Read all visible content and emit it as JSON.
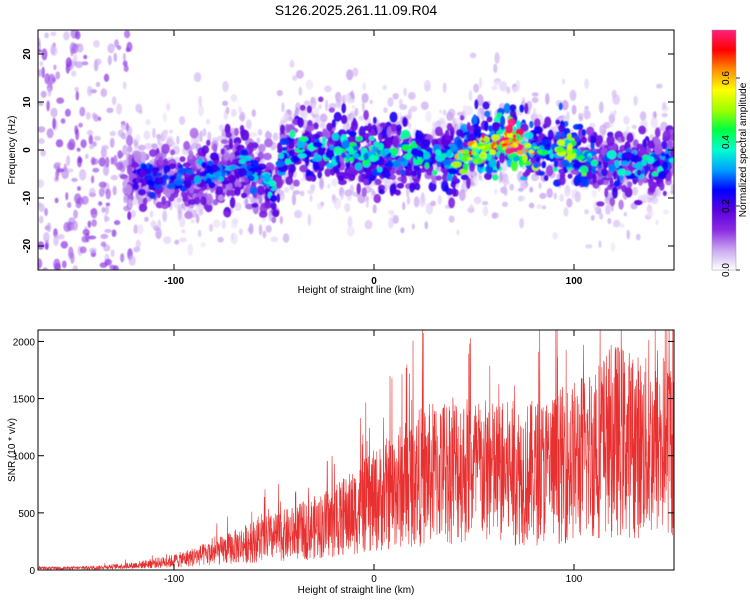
{
  "figure": {
    "title": "S126.2025.261.11.09.R04"
  },
  "chart_data": [
    {
      "type": "heatmap",
      "title": "",
      "xlabel": "Height of straight line (km)",
      "ylabel": "Frequency (Hz)",
      "xlim": [
        -168,
        150
      ],
      "ylim": [
        -25,
        25
      ],
      "xticks": [
        -100,
        0,
        100
      ],
      "yticks": [
        -20,
        -10,
        0,
        10,
        20
      ],
      "colorbar": {
        "label": "Normalized spectral amplitude",
        "range": [
          0,
          0.75
        ],
        "ticks": [
          0.0,
          0.2,
          0.4,
          0.6
        ],
        "colors": [
          "#ffffff",
          "#c9a8f0",
          "#8a2be2",
          "#5a00e0",
          "#0000ff",
          "#00a0ff",
          "#00ffd0",
          "#00ff40",
          "#a0ff00",
          "#ffff00",
          "#ff9000",
          "#ff0000",
          "#ff2080"
        ]
      },
      "ridge": {
        "x": [
          -120,
          -100,
          -80,
          -65,
          -55,
          -50,
          -45,
          -35,
          -20,
          0,
          20,
          40,
          55,
          70,
          80,
          100,
          120,
          140,
          150
        ],
        "y": [
          -6,
          -6,
          -5,
          -3,
          -6,
          -8,
          0,
          1,
          0,
          -1,
          -1,
          -2,
          1,
          2,
          0,
          -1,
          -3,
          -3,
          -2
        ]
      }
    },
    {
      "type": "line",
      "title": "",
      "xlabel": "Height of straight line (km)",
      "ylabel": "SNR (10 * v/v)",
      "xlim": [
        -168,
        150
      ],
      "ylim": [
        0,
        2100
      ],
      "xticks": [
        -100,
        0,
        100
      ],
      "yticks": [
        0,
        500,
        1000,
        1500,
        2000
      ],
      "color": "#e83030",
      "envelope": {
        "x": [
          -168,
          -140,
          -120,
          -100,
          -80,
          -60,
          -40,
          -20,
          0,
          20,
          40,
          60,
          80,
          100,
          120,
          140,
          150
        ],
        "y": [
          15,
          20,
          40,
          80,
          150,
          250,
          320,
          420,
          600,
          800,
          900,
          850,
          850,
          950,
          1150,
          1050,
          1150
        ]
      }
    }
  ]
}
